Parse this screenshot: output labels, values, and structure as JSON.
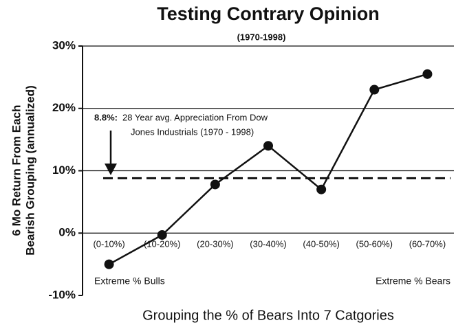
{
  "chart_data": {
    "type": "line",
    "title": "Testing Contrary Opinion",
    "subtitle": "(1970-1998)",
    "ylabel": [
      "6 Mo Return From Each",
      "Bearish Grouping (annualized)"
    ],
    "xlabel": "Grouping the % of Bears Into 7 Catgories",
    "categories": [
      "(0-10%)",
      "(10-20%)",
      "(20-30%)",
      "(30-40%)",
      "(40-50%)",
      "(50-60%)",
      "(60-70%)"
    ],
    "series": [
      {
        "name": "6 Mo Return",
        "color": "#111111",
        "values": [
          -5.0,
          -0.3,
          7.8,
          14.0,
          7.0,
          23.0,
          25.5
        ]
      }
    ],
    "ylim": [
      -10,
      30
    ],
    "yticks": [
      {
        "value": -10,
        "label": "-10%"
      },
      {
        "value": 0,
        "label": "0%"
      },
      {
        "value": 10,
        "label": "10%"
      },
      {
        "value": 20,
        "label": "20%"
      },
      {
        "value": 30,
        "label": "30%"
      }
    ],
    "grid": true,
    "reference": {
      "value": 8.8,
      "label": "8.8%:",
      "text": [
        "28 Year avg. Appreciation From Dow",
        "Jones Industrials (1970 - 1998)"
      ]
    },
    "annotations": [
      "Extreme % Bulls",
      "Extreme % Bears"
    ]
  }
}
